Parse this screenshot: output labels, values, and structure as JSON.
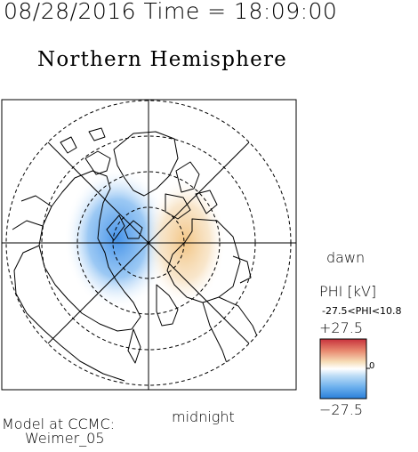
{
  "header": {
    "title": "08/28/2016 Time = 18:09:00",
    "subtitle": "Northern Hemisphere"
  },
  "map": {
    "dawn_label": "dawn",
    "midnight_label": "midnight",
    "projection": "polar, north pole centered",
    "potential_pattern": {
      "dusk_cell": "negative",
      "dawn_cell": "positive"
    }
  },
  "colorbar": {
    "quantity_label": "PHI [kV]",
    "range_text": "-27.5<PHI<10.8",
    "max_label": "+27.5",
    "zero_label": "0",
    "min_label": "−27.5",
    "colors": {
      "max": "#c8323c",
      "mid": "#ffffff",
      "min": "#2a7fd9"
    }
  },
  "footer": {
    "model_line": "Model at CCMC:",
    "model_name": "Weimer_05"
  }
}
